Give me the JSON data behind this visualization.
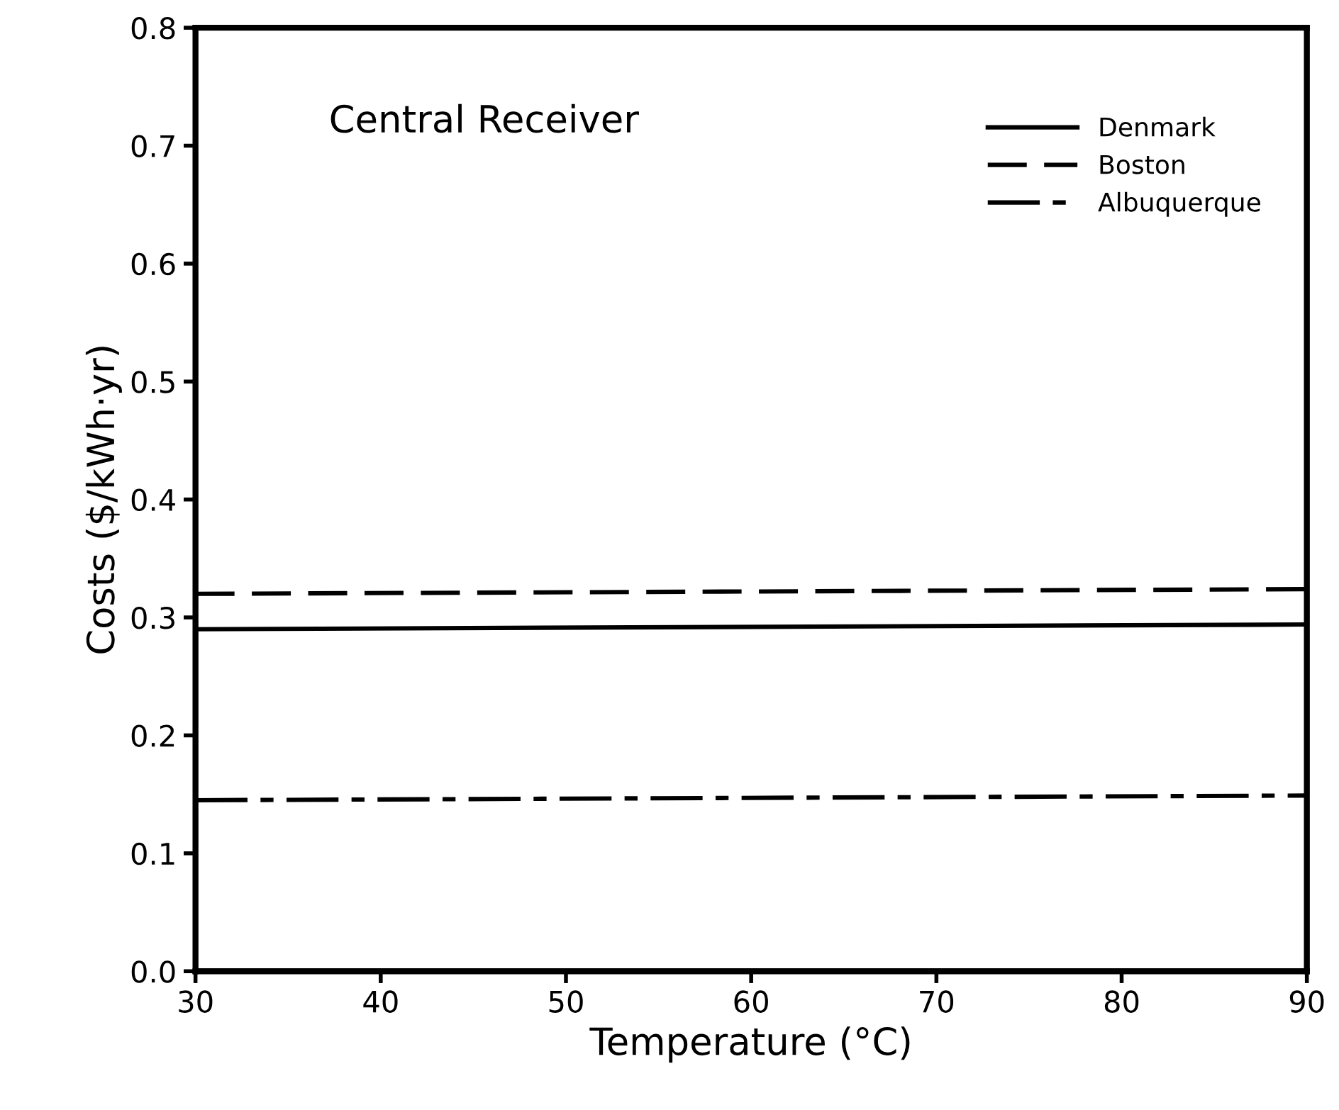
{
  "chart_data": {
    "type": "line",
    "xlabel": "Temperature (°C)",
    "ylabel": "Costs ($/kWh·yr)",
    "annotations": [
      "Central Receiver"
    ],
    "x": [
      30,
      90
    ],
    "series": [
      {
        "name": "Denmark",
        "color": "#000000",
        "line_style": "solid",
        "values": [
          0.29,
          0.294
        ]
      },
      {
        "name": "Boston",
        "color": "#000000",
        "line_style": "dashed",
        "values": [
          0.32,
          0.324
        ]
      },
      {
        "name": "Albuquerque",
        "color": "#000000",
        "line_style": "dashdot",
        "values": [
          0.145,
          0.149
        ]
      }
    ],
    "xlim": [
      30,
      90
    ],
    "ylim": [
      0,
      0.8
    ],
    "xticks": [
      30,
      40,
      50,
      60,
      70,
      80,
      90
    ],
    "yticks": [
      {
        "value": 0,
        "label": "0.0"
      },
      0.1,
      0.2,
      0.3,
      0.4,
      0.5,
      0.6,
      0.7,
      0.8
    ],
    "grid": false,
    "legend": "top right",
    "marker": "none"
  }
}
